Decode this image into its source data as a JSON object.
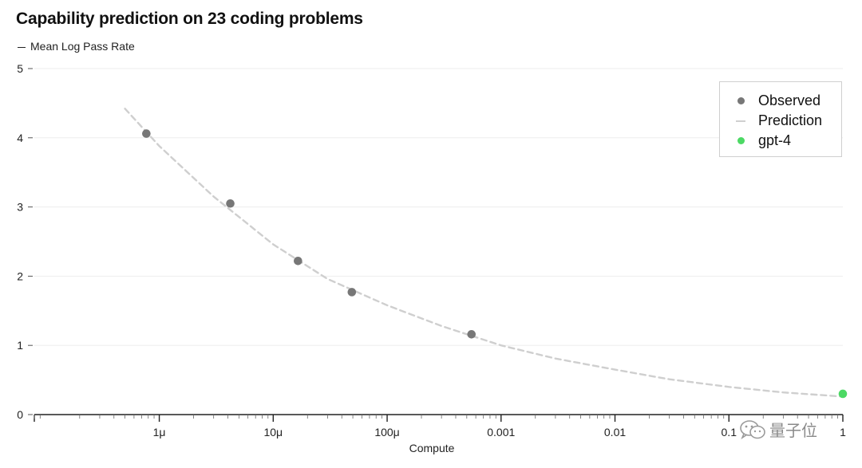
{
  "chart_data": {
    "type": "scatter",
    "title": "Capability prediction on 23 coding problems",
    "xlabel": "Compute",
    "ylabel": "Mean Log Pass Rate",
    "x_scale": "log",
    "xlim": [
      8e-08,
      1.0
    ],
    "ylim": [
      0,
      5
    ],
    "x_ticks": [
      {
        "value": 1e-06,
        "label": "1μ"
      },
      {
        "value": 1e-05,
        "label": "10μ"
      },
      {
        "value": 0.0001,
        "label": "100μ"
      },
      {
        "value": 0.001,
        "label": "0.001"
      },
      {
        "value": 0.01,
        "label": "0.01"
      },
      {
        "value": 0.1,
        "label": "0.1"
      },
      {
        "value": 1,
        "label": "1"
      }
    ],
    "y_ticks": [
      0,
      1,
      2,
      3,
      4,
      5
    ],
    "grid": "horizontal",
    "legend_position": "top-right",
    "series": [
      {
        "name": "Observed",
        "kind": "scatter",
        "color": "#777777",
        "points": [
          {
            "x": 7.7e-07,
            "y": 4.06
          },
          {
            "x": 4.2e-06,
            "y": 3.05
          },
          {
            "x": 1.65e-05,
            "y": 2.22
          },
          {
            "x": 4.9e-05,
            "y": 1.77
          },
          {
            "x": 0.00055,
            "y": 1.16
          }
        ]
      },
      {
        "name": "Prediction",
        "kind": "line",
        "style": "dashed",
        "color": "#cfcfcf",
        "points": [
          {
            "x": 5e-07,
            "y": 4.42
          },
          {
            "x": 1e-06,
            "y": 3.88
          },
          {
            "x": 3e-06,
            "y": 3.15
          },
          {
            "x": 1e-05,
            "y": 2.46
          },
          {
            "x": 3e-05,
            "y": 1.96
          },
          {
            "x": 0.0001,
            "y": 1.58
          },
          {
            "x": 0.0003,
            "y": 1.28
          },
          {
            "x": 0.001,
            "y": 1.0
          },
          {
            "x": 0.003,
            "y": 0.81
          },
          {
            "x": 0.01,
            "y": 0.65
          },
          {
            "x": 0.03,
            "y": 0.51
          },
          {
            "x": 0.1,
            "y": 0.4
          },
          {
            "x": 0.3,
            "y": 0.32
          },
          {
            "x": 1,
            "y": 0.26
          }
        ]
      },
      {
        "name": "gpt-4",
        "kind": "scatter",
        "color": "#4cd964",
        "points": [
          {
            "x": 1.0,
            "y": 0.3
          }
        ]
      }
    ]
  },
  "watermark": {
    "text": "量子位",
    "icon": "wechat-icon"
  }
}
